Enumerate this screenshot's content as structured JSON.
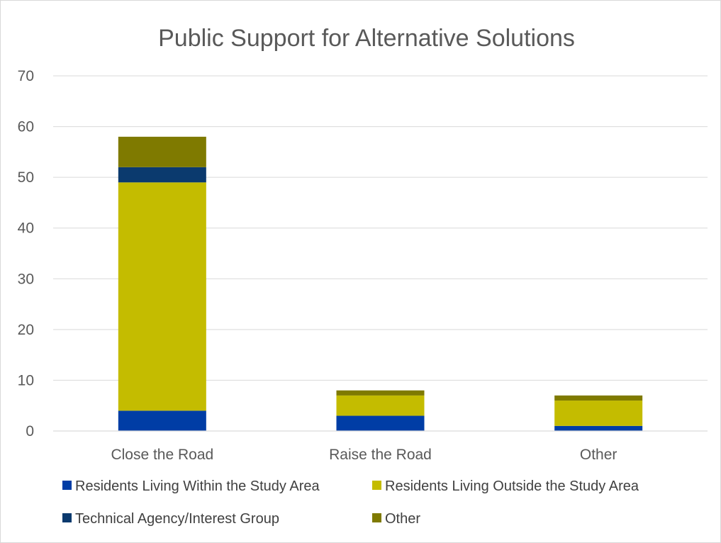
{
  "chart_data": {
    "type": "bar",
    "stacked": true,
    "title": "Public Support for Alternative Solutions",
    "xlabel": "",
    "ylabel": "",
    "categories": [
      "Close the Road",
      "Raise the Road",
      "Other"
    ],
    "series": [
      {
        "name": "Residents Living Within the Study Area",
        "values": [
          4,
          3,
          1
        ],
        "color": "#003da5"
      },
      {
        "name": "Residents Living Outside the Study Area",
        "values": [
          45,
          4,
          5
        ],
        "color": "#c4bc00"
      },
      {
        "name": "Technical Agency/Interest Group",
        "values": [
          3,
          0,
          0
        ],
        "color": "#0b3a6e"
      },
      {
        "name": "Other",
        "values": [
          6,
          1,
          1
        ],
        "color": "#7f7a00"
      }
    ],
    "ylim": [
      0,
      70
    ],
    "yticks": [
      "0",
      "10",
      "20",
      "30",
      "40",
      "50",
      "60",
      "70"
    ],
    "grid": true,
    "legend_position": "bottom"
  }
}
